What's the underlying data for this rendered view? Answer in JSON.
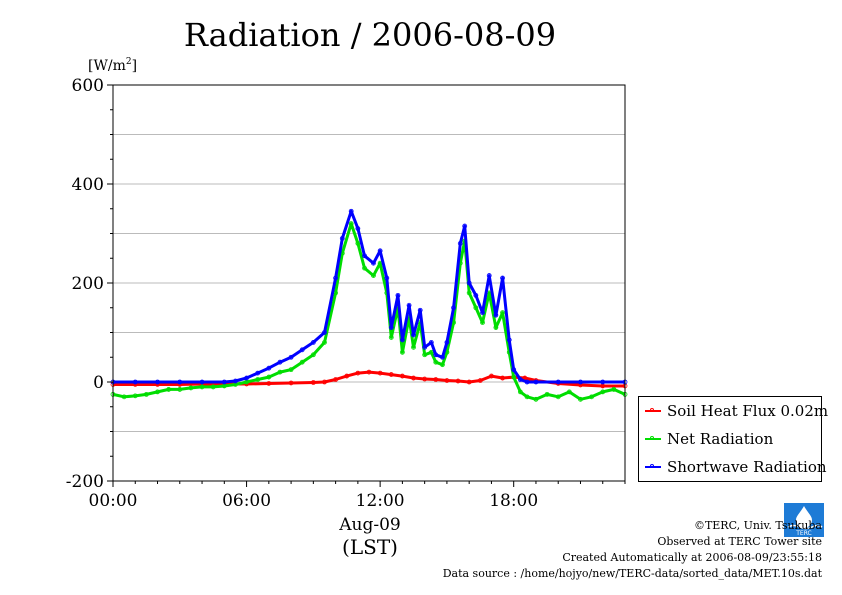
{
  "chart_data": {
    "type": "line",
    "title": "Radiation / 2006-08-09",
    "ylabel_unit": "[W/m",
    "ylabel_sup": "2",
    "ylabel_close": "]",
    "x_date_label": "Aug-09",
    "x_zone_label": "(LST)",
    "x_range_hours": [
      0,
      23
    ],
    "ylim": [
      -200,
      600
    ],
    "x_ticks": [
      {
        "hour": 0,
        "label": "00:00"
      },
      {
        "hour": 6,
        "label": "06:00"
      },
      {
        "hour": 12,
        "label": "12:00"
      },
      {
        "hour": 18,
        "label": "18:00"
      }
    ],
    "y_ticks": [
      {
        "value": -200,
        "label": "-200"
      },
      {
        "value": 0,
        "label": "0"
      },
      {
        "value": 200,
        "label": "200"
      },
      {
        "value": 400,
        "label": "400"
      },
      {
        "value": 600,
        "label": "600"
      }
    ],
    "grid": true,
    "legend_position": "right",
    "series": [
      {
        "name": "Soil Heat Flux 0.02m",
        "color": "#ff0000",
        "x": [
          0,
          1,
          2,
          3,
          4,
          5,
          6,
          7,
          8,
          9,
          9.5,
          10,
          10.5,
          11,
          11.5,
          12,
          12.5,
          13,
          13.5,
          14,
          14.5,
          15,
          15.5,
          16,
          16.5,
          17,
          17.5,
          18,
          18.5,
          19,
          20,
          21,
          22,
          23
        ],
        "values": [
          -5,
          -5,
          -5,
          -5,
          -4,
          -4,
          -4,
          -3,
          -2,
          -1,
          0,
          5,
          12,
          18,
          20,
          18,
          15,
          12,
          8,
          6,
          5,
          3,
          2,
          0,
          3,
          12,
          8,
          10,
          8,
          3,
          -3,
          -6,
          -8,
          -8
        ]
      },
      {
        "name": "Net Radiation",
        "color": "#00dd00",
        "x": [
          0,
          0.5,
          1,
          1.5,
          2,
          2.5,
          3,
          3.5,
          4,
          4.5,
          5,
          5.5,
          6,
          6.5,
          7,
          7.5,
          8,
          8.5,
          9,
          9.5,
          10,
          10.3,
          10.7,
          11,
          11.3,
          11.7,
          12,
          12.3,
          12.5,
          12.8,
          13,
          13.3,
          13.5,
          13.8,
          14,
          14.3,
          14.5,
          14.8,
          15,
          15.3,
          15.6,
          15.8,
          16,
          16.3,
          16.6,
          16.9,
          17.2,
          17.5,
          17.8,
          18,
          18.3,
          18.6,
          19,
          19.5,
          20,
          20.5,
          21,
          21.5,
          22,
          22.5,
          23
        ],
        "values": [
          -25,
          -30,
          -28,
          -25,
          -20,
          -15,
          -15,
          -12,
          -10,
          -10,
          -8,
          -5,
          0,
          5,
          10,
          20,
          25,
          40,
          55,
          80,
          180,
          260,
          320,
          280,
          230,
          215,
          240,
          180,
          90,
          150,
          60,
          130,
          70,
          120,
          55,
          60,
          40,
          35,
          60,
          120,
          240,
          285,
          180,
          150,
          120,
          180,
          110,
          140,
          60,
          10,
          -20,
          -30,
          -35,
          -25,
          -30,
          -20,
          -35,
          -30,
          -20,
          -15,
          -25
        ]
      },
      {
        "name": "Shortwave Radiation",
        "color": "#0000ff",
        "x": [
          0,
          1,
          2,
          3,
          4,
          5,
          5.5,
          6,
          6.5,
          7,
          7.5,
          8,
          8.5,
          9,
          9.5,
          10,
          10.3,
          10.7,
          11,
          11.3,
          11.7,
          12,
          12.3,
          12.5,
          12.8,
          13,
          13.3,
          13.5,
          13.8,
          14,
          14.3,
          14.5,
          14.8,
          15,
          15.3,
          15.6,
          15.8,
          16,
          16.3,
          16.6,
          16.9,
          17.2,
          17.5,
          17.8,
          18,
          18.3,
          18.6,
          19,
          20,
          21,
          22,
          23
        ],
        "values": [
          0,
          0,
          0,
          0,
          0,
          0,
          2,
          8,
          18,
          28,
          40,
          50,
          65,
          80,
          100,
          210,
          290,
          345,
          310,
          255,
          240,
          265,
          210,
          110,
          175,
          85,
          155,
          95,
          145,
          70,
          80,
          55,
          50,
          80,
          150,
          280,
          315,
          200,
          175,
          140,
          215,
          135,
          210,
          85,
          25,
          5,
          0,
          0,
          0,
          0,
          0,
          0
        ]
      }
    ]
  },
  "credits": {
    "copyright": "©TERC, Univ. Tsukuba",
    "observed": "Observed at TERC Tower site",
    "created": "Created Automatically at 2006-08-09/23:55:18",
    "source": "Data source : /home/hojyo/new/TERC-data/sorted_data/MET.10s.dat"
  },
  "logo_text": "TERC"
}
